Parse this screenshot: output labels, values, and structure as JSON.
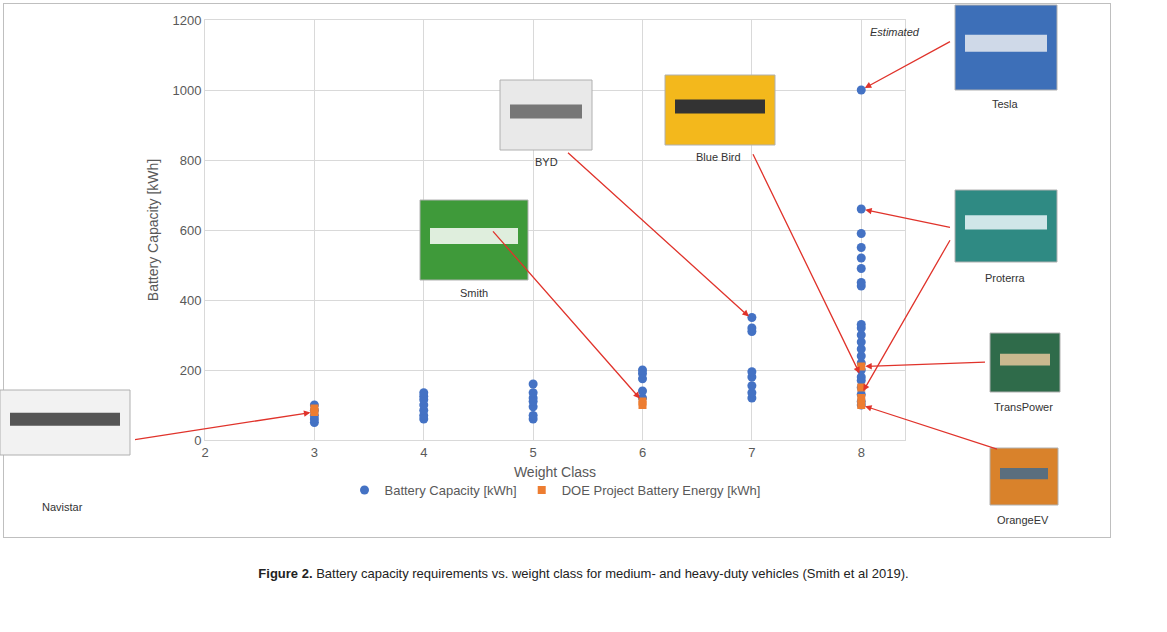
{
  "chart_data": {
    "type": "scatter",
    "x_label": "Weight Class",
    "y_label": "Battery Capacity [kWh]",
    "xlim": [
      2,
      8.4
    ],
    "xticks": [
      2,
      3,
      4,
      5,
      6,
      7,
      8
    ],
    "ylim": [
      0,
      1200
    ],
    "yticks": [
      0,
      200,
      400,
      600,
      800,
      1000,
      1200
    ],
    "grid": true,
    "legend": "bottom",
    "series": [
      {
        "name": "Battery Capacity [kWh]",
        "color": "#4472c4",
        "marker": "circle",
        "x": [
          3,
          3,
          3,
          3,
          3,
          4,
          4,
          4,
          4,
          4,
          4,
          4,
          5,
          5,
          5,
          5,
          5,
          5,
          5,
          6,
          6,
          6,
          6,
          6,
          7,
          7,
          7,
          7,
          7,
          7,
          7,
          7,
          8,
          8,
          8,
          8,
          8,
          8,
          8,
          8,
          8,
          8,
          8,
          8,
          8,
          8,
          8,
          8,
          8,
          8,
          8,
          8,
          8,
          8
        ],
        "values": [
          50,
          60,
          70,
          85,
          100,
          60,
          70,
          85,
          100,
          115,
          125,
          135,
          60,
          70,
          95,
          110,
          120,
          135,
          160,
          120,
          140,
          175,
          190,
          200,
          120,
          135,
          155,
          180,
          195,
          310,
          320,
          350,
          100,
          110,
          130,
          150,
          170,
          180,
          200,
          220,
          240,
          260,
          280,
          300,
          320,
          330,
          440,
          450,
          490,
          520,
          550,
          590,
          660,
          1000
        ]
      },
      {
        "name": "DOE Project Battery Energy [kWh]",
        "color": "#ed7d31",
        "marker": "square",
        "x": [
          3,
          3,
          6,
          6,
          8,
          8,
          8,
          8
        ],
        "values": [
          80,
          90,
          100,
          110,
          100,
          120,
          150,
          210
        ]
      }
    ],
    "annotations": [
      {
        "text": "Navistar",
        "points": [
          [
            3,
            80
          ]
        ]
      },
      {
        "text": "Smith",
        "points": [
          [
            6,
            110
          ]
        ]
      },
      {
        "text": "BYD",
        "points": [
          [
            7,
            345
          ]
        ]
      },
      {
        "text": "Blue Bird",
        "points": [
          [
            8,
            180
          ]
        ]
      },
      {
        "text": "Tesla",
        "points": [
          [
            8,
            1000
          ]
        ]
      },
      {
        "text": "Proterra",
        "points": [
          [
            8,
            660
          ],
          [
            8,
            130
          ]
        ]
      },
      {
        "text": "TransPower",
        "points": [
          [
            8,
            210
          ]
        ]
      },
      {
        "text": "OrangeEV",
        "points": [
          [
            8,
            100
          ]
        ]
      },
      {
        "text": "Estimated"
      }
    ],
    "caption": "Figure 2. Battery capacity requirements vs. weight class for medium- and heavy-duty vehicles (Smith et al 2019)."
  }
}
